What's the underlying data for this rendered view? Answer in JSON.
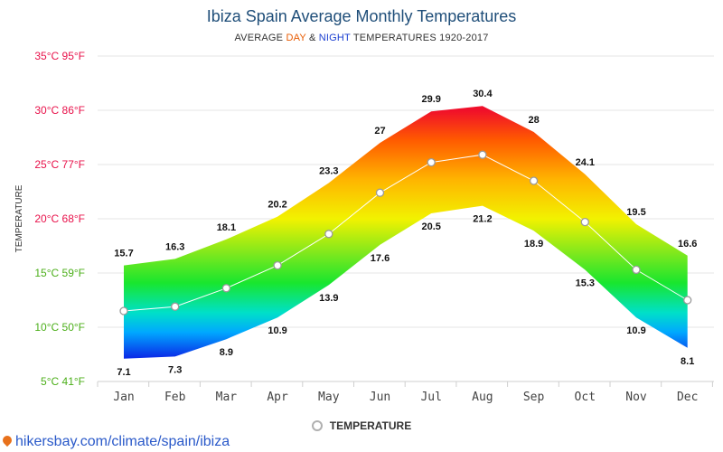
{
  "title": "Ibiza Spain Average Monthly Temperatures",
  "subtitle": {
    "prefix": "AVERAGE ",
    "day": "DAY",
    "amp": " & ",
    "night": "NIGHT",
    "suffix": " TEMPERATURES 1920-2017"
  },
  "source_url": "hikersbay.com/climate/spain/ibiza",
  "legend": {
    "label": "TEMPERATURE"
  },
  "chart_data": {
    "type": "area",
    "ylabel": "TEMPERATURE",
    "ylim": [
      5,
      35
    ],
    "y_ticks": [
      {
        "value": 35,
        "label": "35°C 95°F",
        "color": "#e8114a"
      },
      {
        "value": 30,
        "label": "30°C 86°F",
        "color": "#e8114a"
      },
      {
        "value": 25,
        "label": "25°C 77°F",
        "color": "#e8114a"
      },
      {
        "value": 20,
        "label": "20°C 68°F",
        "color": "#e8114a"
      },
      {
        "value": 15,
        "label": "15°C 59°F",
        "color": "#4caf1a"
      },
      {
        "value": 10,
        "label": "10°C 50°F",
        "color": "#4caf1a"
      },
      {
        "value": 5,
        "label": "5°C 41°F",
        "color": "#4caf1a"
      }
    ],
    "categories": [
      "Jan",
      "Feb",
      "Mar",
      "Apr",
      "May",
      "Jun",
      "Jul",
      "Aug",
      "Sep",
      "Oct",
      "Nov",
      "Dec"
    ],
    "series": [
      {
        "values": [
          15.7,
          16.3,
          18.1,
          20.2,
          23.3,
          27,
          29.9,
          30.4,
          28,
          24.1,
          19.5,
          16.6
        ]
      },
      {
        "values": [
          7.1,
          7.3,
          8.9,
          10.9,
          13.9,
          17.6,
          20.5,
          21.2,
          18.9,
          15.3,
          10.9,
          8.1
        ]
      },
      {
        "name": "TEMPERATURE",
        "values": [
          11.5,
          11.9,
          13.6,
          15.7,
          18.6,
          22.4,
          25.2,
          25.9,
          23.5,
          19.7,
          15.3,
          12.5
        ]
      }
    ],
    "grid": true,
    "legend": "bottom"
  }
}
